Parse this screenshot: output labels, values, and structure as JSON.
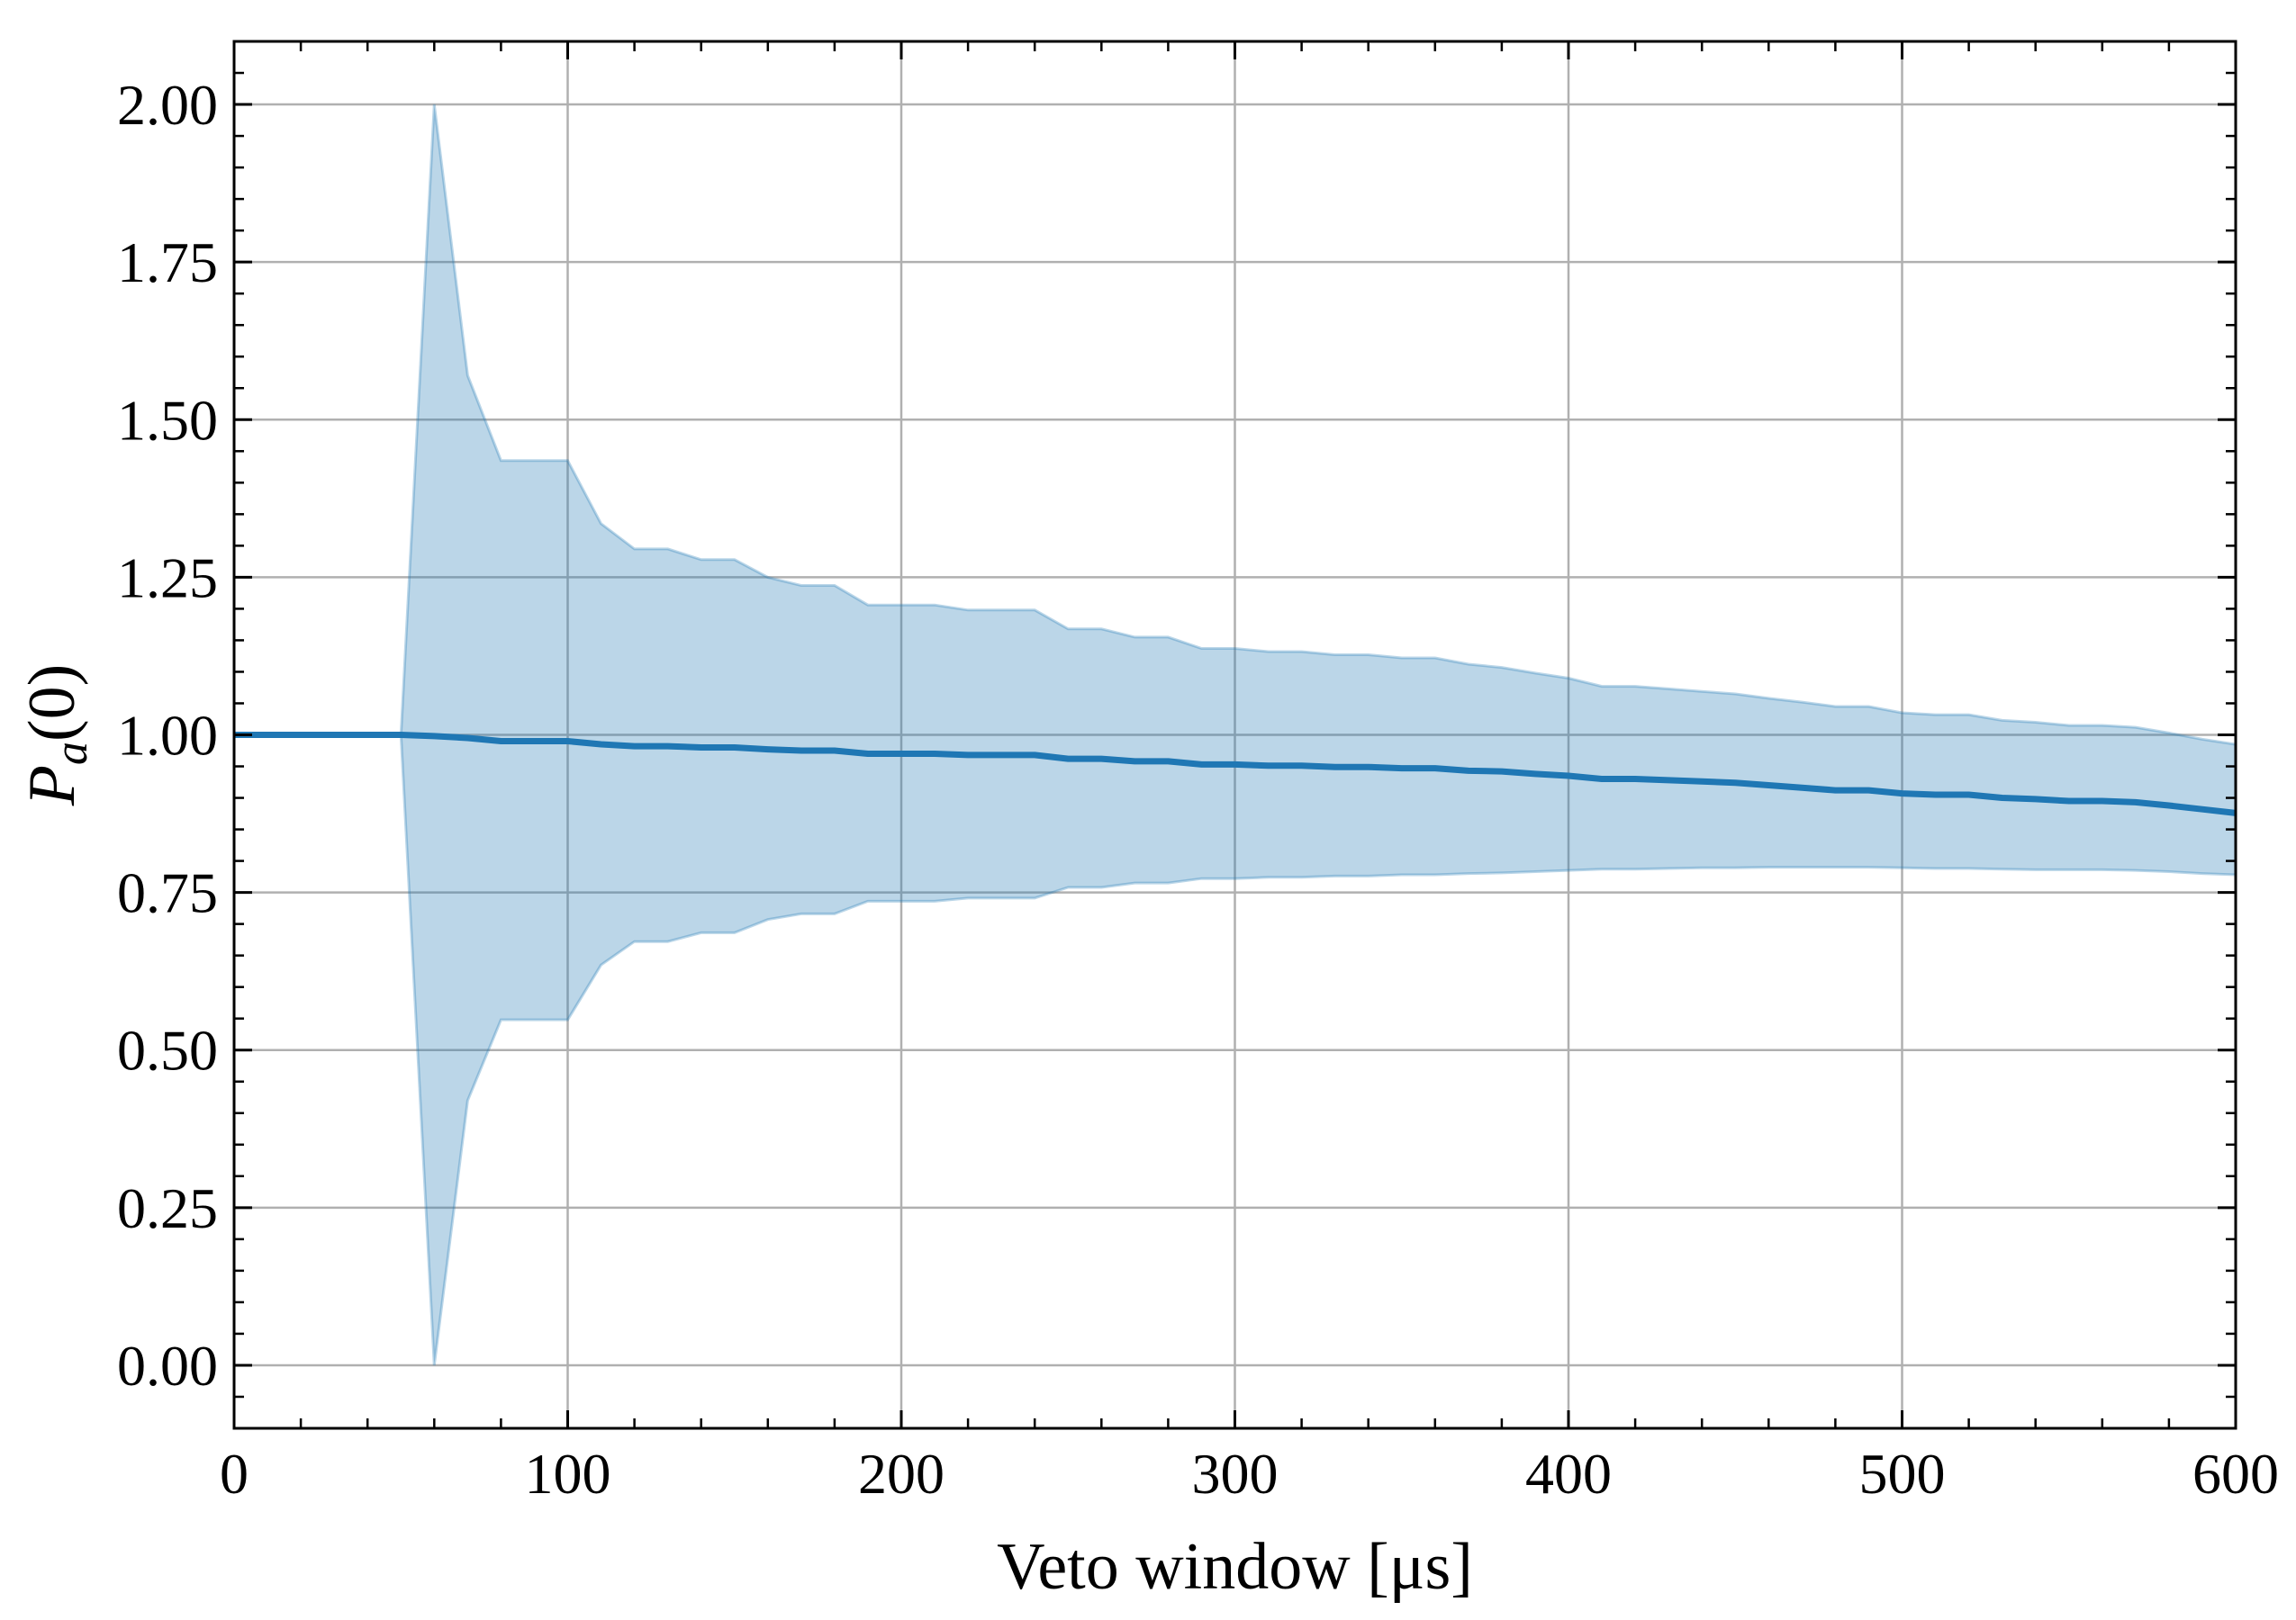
{
  "chart_data": {
    "type": "line",
    "title": "",
    "xlabel": "Veto window [μs]",
    "ylabel_main": "P",
    "ylabel_sub": "a",
    "ylabel_tail": "(0)",
    "xlim": [
      0,
      600
    ],
    "ylim": [
      -0.1,
      2.1
    ],
    "xticks": [
      0,
      100,
      200,
      300,
      400,
      500,
      600
    ],
    "xtick_labels": [
      "0",
      "100",
      "200",
      "300",
      "400",
      "500",
      "600"
    ],
    "yticks": [
      0.0,
      0.25,
      0.5,
      0.75,
      1.0,
      1.25,
      1.5,
      1.75,
      2.0
    ],
    "ytick_labels": [
      "0.00",
      "0.25",
      "0.50",
      "0.75",
      "1.00",
      "1.25",
      "1.50",
      "1.75",
      "2.00"
    ],
    "grid": true,
    "colors": {
      "line": "#1f77b4",
      "band": "#1f77b4",
      "grid": "#b0b0b0"
    },
    "series": [
      {
        "kind": "line",
        "x": [
          0,
          10,
          20,
          30,
          40,
          50,
          60,
          70,
          80,
          90,
          100,
          110,
          120,
          130,
          140,
          150,
          160,
          170,
          180,
          190,
          200,
          210,
          220,
          230,
          240,
          250,
          260,
          270,
          280,
          290,
          300,
          310,
          320,
          330,
          340,
          350,
          360,
          370,
          380,
          390,
          400,
          410,
          420,
          430,
          440,
          450,
          460,
          470,
          480,
          490,
          500,
          510,
          520,
          530,
          540,
          550,
          560,
          570,
          580,
          590,
          600
        ],
        "y": [
          1.0,
          1.0,
          1.0,
          1.0,
          1.0,
          1.0,
          0.998,
          0.995,
          0.99,
          0.99,
          0.99,
          0.985,
          0.982,
          0.982,
          0.98,
          0.98,
          0.977,
          0.975,
          0.975,
          0.97,
          0.97,
          0.97,
          0.968,
          0.968,
          0.968,
          0.962,
          0.962,
          0.958,
          0.958,
          0.953,
          0.953,
          0.951,
          0.951,
          0.949,
          0.949,
          0.947,
          0.947,
          0.943,
          0.942,
          0.938,
          0.935,
          0.93,
          0.93,
          0.928,
          0.926,
          0.924,
          0.92,
          0.916,
          0.912,
          0.912,
          0.907,
          0.905,
          0.905,
          0.9,
          0.898,
          0.895,
          0.895,
          0.893,
          0.888,
          0.882,
          0.876
        ]
      },
      {
        "kind": "band",
        "x": [
          0,
          10,
          20,
          30,
          40,
          50,
          60,
          70,
          80,
          90,
          100,
          110,
          120,
          130,
          140,
          150,
          160,
          170,
          180,
          190,
          200,
          210,
          220,
          230,
          240,
          250,
          260,
          270,
          280,
          290,
          300,
          310,
          320,
          330,
          340,
          350,
          360,
          370,
          380,
          390,
          400,
          410,
          420,
          430,
          440,
          450,
          460,
          470,
          480,
          490,
          500,
          510,
          520,
          530,
          540,
          550,
          560,
          570,
          580,
          590,
          600
        ],
        "upper": [
          1.0,
          1.0,
          1.0,
          1.0,
          1.0,
          1.0,
          2.0,
          1.57,
          1.435,
          1.435,
          1.435,
          1.335,
          1.295,
          1.295,
          1.278,
          1.278,
          1.25,
          1.237,
          1.237,
          1.206,
          1.206,
          1.206,
          1.198,
          1.198,
          1.198,
          1.168,
          1.168,
          1.155,
          1.155,
          1.137,
          1.137,
          1.132,
          1.132,
          1.127,
          1.127,
          1.122,
          1.122,
          1.112,
          1.107,
          1.098,
          1.09,
          1.077,
          1.077,
          1.073,
          1.069,
          1.065,
          1.058,
          1.052,
          1.045,
          1.045,
          1.035,
          1.032,
          1.032,
          1.023,
          1.02,
          1.015,
          1.015,
          1.012,
          1.003,
          0.993,
          0.985
        ],
        "lower": [
          1.0,
          1.0,
          1.0,
          1.0,
          1.0,
          1.0,
          0.0,
          0.42,
          0.548,
          0.548,
          0.548,
          0.635,
          0.672,
          0.672,
          0.686,
          0.686,
          0.707,
          0.716,
          0.716,
          0.736,
          0.736,
          0.736,
          0.741,
          0.741,
          0.741,
          0.758,
          0.758,
          0.765,
          0.765,
          0.772,
          0.772,
          0.774,
          0.774,
          0.776,
          0.776,
          0.778,
          0.778,
          0.78,
          0.781,
          0.783,
          0.785,
          0.787,
          0.787,
          0.788,
          0.789,
          0.789,
          0.79,
          0.79,
          0.79,
          0.79,
          0.789,
          0.788,
          0.788,
          0.787,
          0.786,
          0.786,
          0.786,
          0.785,
          0.783,
          0.78,
          0.778
        ]
      }
    ]
  }
}
